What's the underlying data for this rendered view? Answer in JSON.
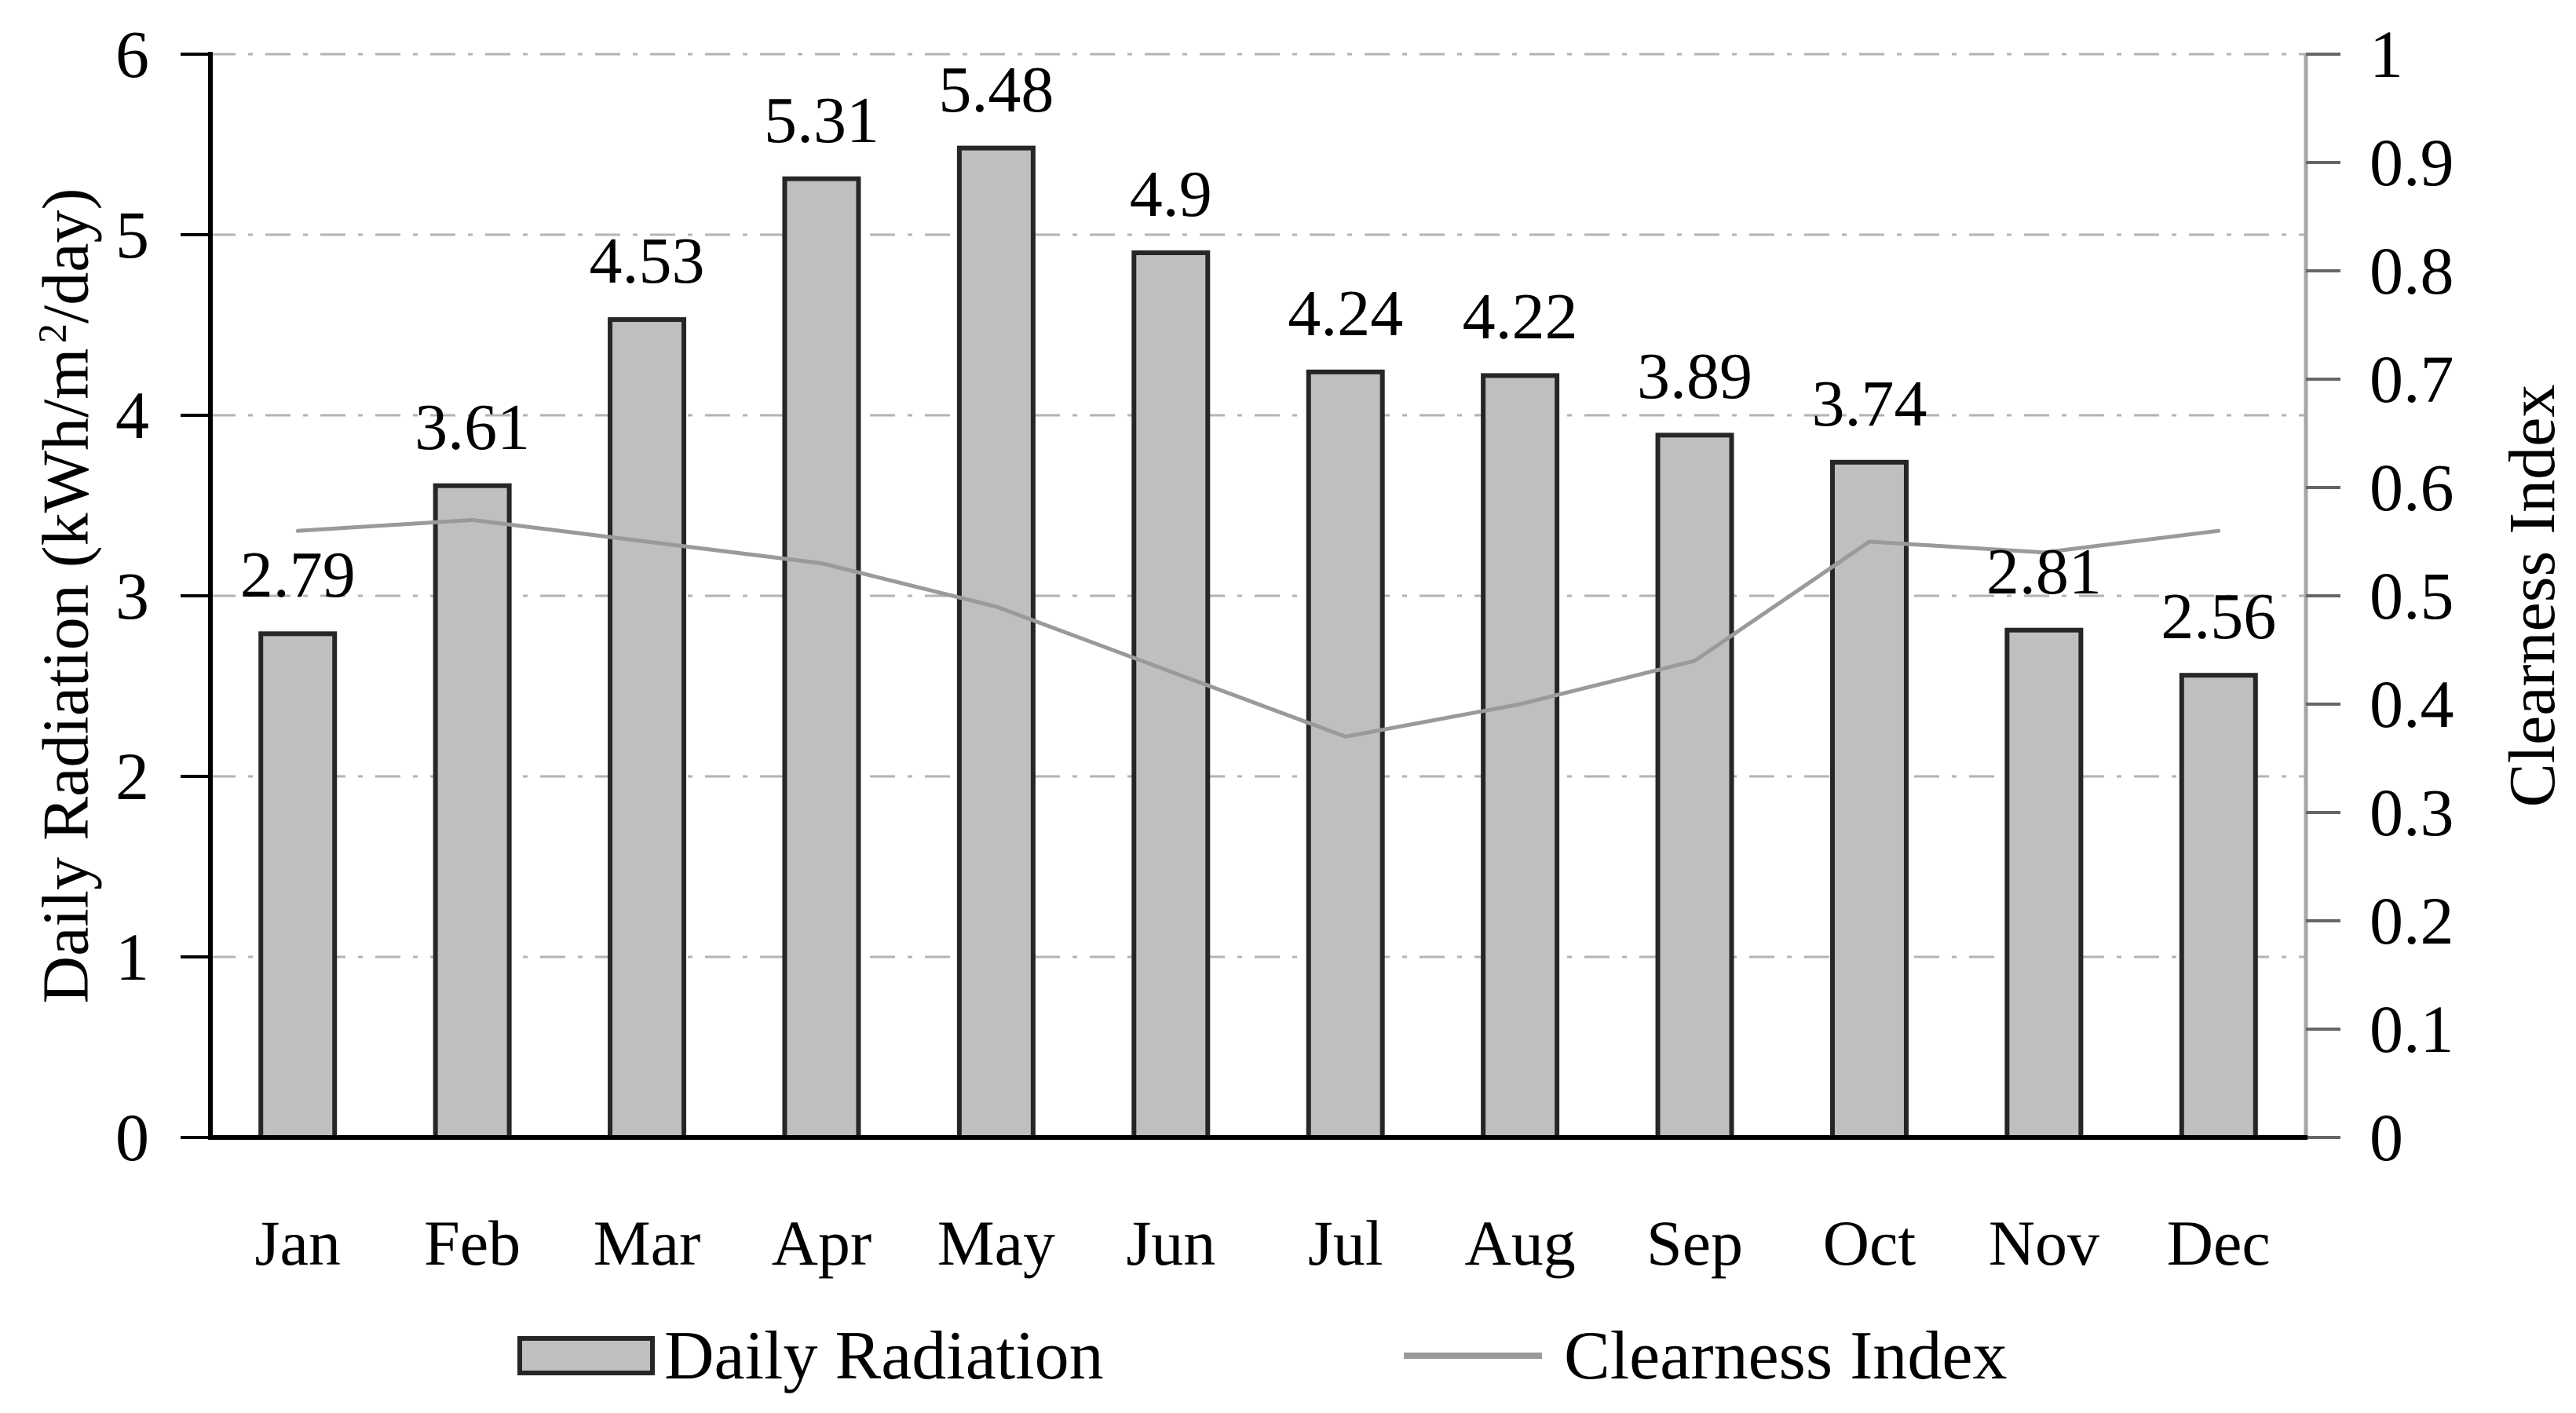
{
  "figure": {
    "left_axis_title": {
      "pre": "Daily Radiation (kWh/m",
      "sup": "2",
      "post": "/day)"
    },
    "right_axis_title": "Clearness Index"
  },
  "legend": {
    "bar_label": "Daily Radiation",
    "line_label": "Clearness Index"
  },
  "chart_data": {
    "type": "bar+line",
    "title": "",
    "categories": [
      "Jan",
      "Feb",
      "Mar",
      "Apr",
      "May",
      "Jun",
      "Jul",
      "Aug",
      "Sep",
      "Oct",
      "Nov",
      "Dec"
    ],
    "series": [
      {
        "name": "Daily Radiation",
        "type": "bar",
        "yaxis": "left",
        "values": [
          2.79,
          3.61,
          4.53,
          5.31,
          5.48,
          4.9,
          4.24,
          4.22,
          3.89,
          3.74,
          2.81,
          2.56
        ],
        "data_labels": [
          "2.79",
          "3.61",
          "4.53",
          "5.31",
          "5.48",
          "4.9",
          "4.24",
          "4.22",
          "3.89",
          "3.74",
          "2.81",
          "2.56"
        ]
      },
      {
        "name": "Clearness Index",
        "type": "line",
        "yaxis": "right",
        "values": [
          0.56,
          0.57,
          0.55,
          0.53,
          0.49,
          0.43,
          0.37,
          0.4,
          0.44,
          0.55,
          0.54,
          0.56
        ]
      }
    ],
    "left_axis": {
      "label": "Daily Radiation (kWh/m2/day)",
      "min": 0,
      "max": 6,
      "tick_step": 1,
      "tick_labels": [
        "0",
        "1",
        "2",
        "3",
        "4",
        "5",
        "6"
      ]
    },
    "right_axis": {
      "label": "Clearness Index",
      "min": 0,
      "max": 1,
      "tick_step": 0.1,
      "tick_labels": [
        "0",
        "0.1",
        "0.2",
        "0.3",
        "0.4",
        "0.5",
        "0.6",
        "0.7",
        "0.8",
        "0.9",
        "1"
      ]
    },
    "grid": true,
    "gridline_style": "dash-dot",
    "legend_position": "bottom",
    "colors": {
      "bar_fill": "#bfbfbf",
      "bar_border": "#262626",
      "line": "#9a9a9a",
      "gridline": "#b3b3b3",
      "axis_left": "#000000",
      "axis_bottom": "#000000",
      "axis_right": "#a6a6a6",
      "tick_right": "#666666",
      "text": "#000000",
      "background": "#ffffff"
    }
  }
}
